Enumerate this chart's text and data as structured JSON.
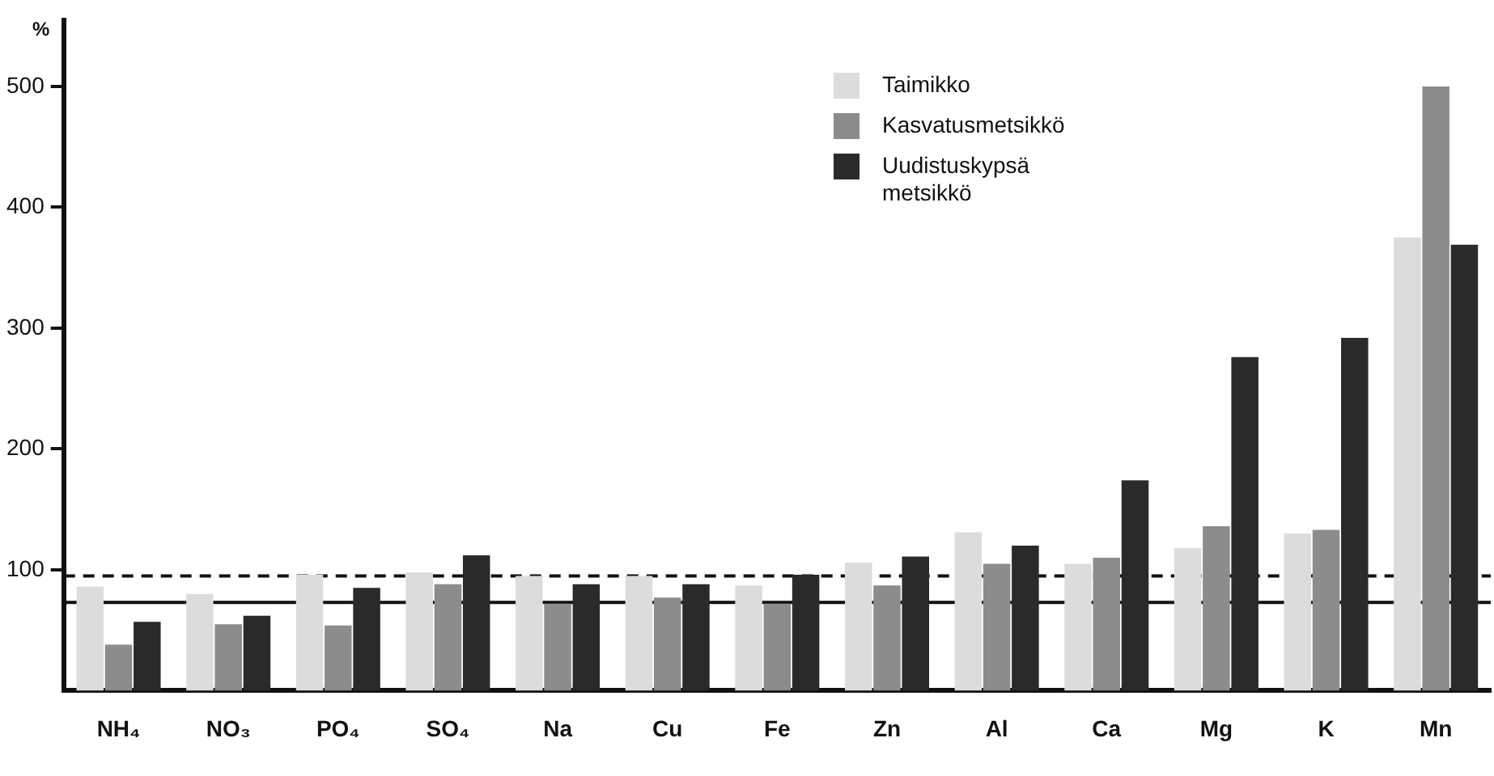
{
  "chart_data": {
    "type": "bar",
    "ylabel": "%",
    "categories": [
      "NH₄",
      "NO₃",
      "PO₄",
      "SO₄",
      "Na",
      "Cu",
      "Fe",
      "Zn",
      "Al",
      "Ca",
      "Mg",
      "K",
      "Mn"
    ],
    "series": [
      {
        "name": "Taimikko",
        "color": "#dcdcdc",
        "values": [
          86,
          80,
          96,
          98,
          95,
          95,
          87,
          106,
          131,
          105,
          118,
          130,
          375
        ]
      },
      {
        "name": "Kasvatusmetsikkö",
        "color": "#8c8c8c",
        "values": [
          38,
          55,
          54,
          88,
          72,
          77,
          72,
          87,
          105,
          110,
          136,
          133,
          500
        ]
      },
      {
        "name": "Uudistuskypsä metsikkö",
        "color": "#2a2a2a",
        "values": [
          57,
          62,
          85,
          112,
          88,
          88,
          96,
          111,
          120,
          174,
          276,
          292,
          369
        ]
      }
    ],
    "ylim": [
      0,
      555
    ],
    "yticks": [
      100,
      200,
      300,
      400,
      500
    ],
    "ref_lines": [
      {
        "axis": "y",
        "value": 95,
        "line_style": "dashed"
      },
      {
        "axis": "y",
        "value": 73,
        "line_style": "solid"
      }
    ],
    "grid": false,
    "legend": "top right"
  }
}
